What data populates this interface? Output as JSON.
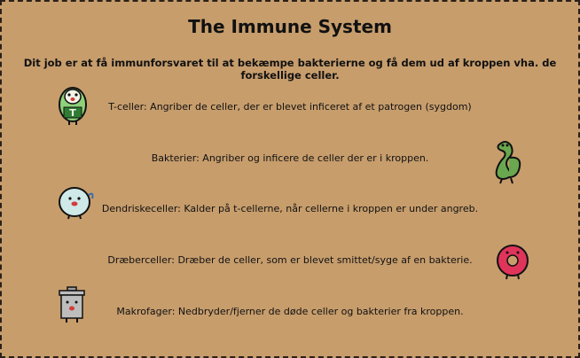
{
  "title": "The Immune System",
  "intro": "Dit job er at få immunforsvaret til at bekæmpe bakterierne og få dem ud af kroppen vha. de forskellige celler.",
  "rows": [
    {
      "label": "T-celler: Angriber de celler, der er blevet inficeret af et patrogen (sygdom)",
      "icon": "t-cell-icon"
    },
    {
      "label": "Bakterier: Angriber og inficere de celler der er i kroppen.",
      "icon": "bacteria-icon"
    },
    {
      "label": "Dendriskeceller: Kalder på t-cellerne, når cellerne i kroppen er under angreb.",
      "icon": "dendritic-cell-icon"
    },
    {
      "label": "Dræberceller: Dræber de celler, som er blevet smittet/syge af en bakterie.",
      "icon": "killer-cell-icon"
    },
    {
      "label": "Makrofager: Nedbryder/fjerner de døde celler og bakterier fra kroppen.",
      "icon": "macrophage-icon"
    }
  ],
  "sprite_letter": "T",
  "colors": {
    "background": "#c79d6c",
    "border": "#2a2018"
  }
}
